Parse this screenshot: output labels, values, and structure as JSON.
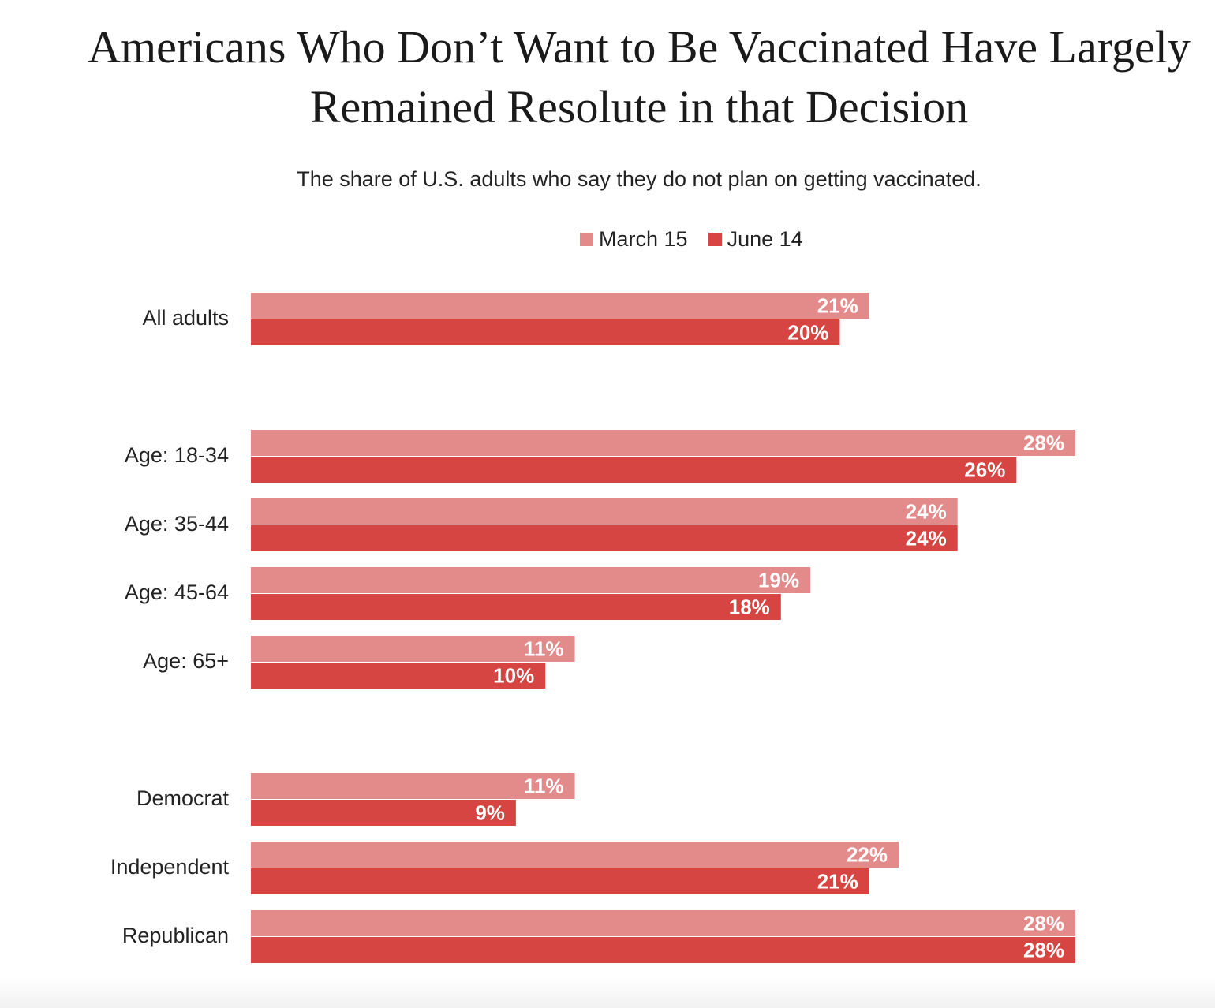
{
  "chart_data": {
    "type": "bar",
    "orientation": "horizontal",
    "title": "Americans Who Don’t Want to Be Vaccinated Have Largely Remained Resolute in that Decision",
    "subtitle": "The share of U.S. adults who say they do not plan on getting vaccinated.",
    "legend_position": "top",
    "grid": false,
    "xlim": [
      0,
      28
    ],
    "categories": [
      "All adults",
      "Age: 18-34",
      "Age: 35-44",
      "Age: 45-64",
      "Age: 65+",
      "Democrat",
      "Independent",
      "Republican"
    ],
    "groups": [
      [
        0
      ],
      [
        1,
        2,
        3,
        4
      ],
      [
        5,
        6,
        7
      ]
    ],
    "series": [
      {
        "name": "March 15",
        "color": "#e38a8a",
        "values": [
          21,
          28,
          24,
          19,
          11,
          11,
          22,
          28
        ],
        "labels": [
          "21%",
          "28%",
          "24%",
          "19%",
          "11%",
          "11%",
          "22%",
          "28%"
        ]
      },
      {
        "name": "June 14",
        "color": "#d64541",
        "values": [
          20,
          26,
          24,
          18,
          10,
          9,
          21,
          28
        ],
        "labels": [
          "20%",
          "26%",
          "24%",
          "18%",
          "10%",
          "9%",
          "21%",
          "28%"
        ]
      }
    ]
  }
}
